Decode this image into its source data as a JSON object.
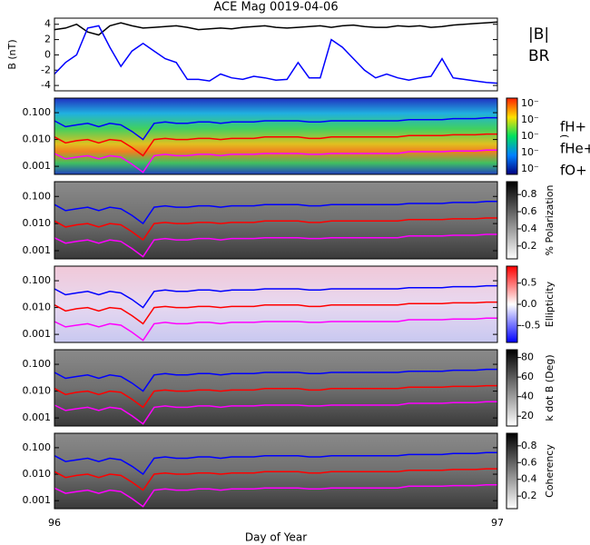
{
  "chart_data": [
    {
      "type": "line",
      "title": "ACE Mag 0019-04-06",
      "ylabel": "B (nT)",
      "x": [
        96.0,
        96.025,
        96.05,
        96.075,
        96.1,
        96.125,
        96.15,
        96.175,
        96.2,
        96.225,
        96.25,
        96.275,
        96.3,
        96.325,
        96.35,
        96.375,
        96.4,
        96.425,
        96.45,
        96.475,
        96.5,
        96.525,
        96.55,
        96.575,
        96.6,
        96.625,
        96.65,
        96.675,
        96.7,
        96.725,
        96.75,
        96.775,
        96.8,
        96.825,
        96.85,
        96.875,
        96.9,
        96.925,
        96.95,
        96.975,
        97.0
      ],
      "xlim": [
        96,
        97
      ],
      "ylim": [
        -4.7,
        4.8
      ],
      "yticks": [
        4,
        2,
        0,
        -2,
        -4
      ],
      "series": [
        {
          "name": "|B|",
          "color": "#000000",
          "values": [
            3.3,
            3.5,
            4,
            3,
            2.6,
            3.8,
            4.2,
            3.8,
            3.5,
            3.6,
            3.7,
            3.8,
            3.6,
            3.3,
            3.4,
            3.5,
            3.4,
            3.6,
            3.7,
            3.8,
            3.6,
            3.5,
            3.6,
            3.7,
            3.8,
            3.6,
            3.8,
            3.9,
            3.7,
            3.6,
            3.6,
            3.8,
            3.7,
            3.8,
            3.6,
            3.7,
            3.9,
            4,
            4.1,
            4.2,
            4.3
          ]
        },
        {
          "name": "BR",
          "color": "#0000ff",
          "values": [
            -2.5,
            -1,
            0,
            3.5,
            3.8,
            1,
            -1.5,
            0.5,
            1.5,
            0.5,
            -0.5,
            -1,
            -3.2,
            -3.2,
            -3.4,
            -2.5,
            -3,
            -3.2,
            -2.8,
            -3,
            -3.3,
            -3.2,
            -1,
            -3,
            -3,
            2,
            1,
            -0.5,
            -2,
            -3,
            -2.5,
            -3,
            -3.3,
            -3,
            -2.8,
            -0.5,
            -3,
            -3.2,
            -3.4,
            -3.6,
            -3.7
          ]
        }
      ]
    },
    {
      "type": "spectrogram",
      "ylog": true,
      "ylim": [
        0.0005,
        0.35
      ],
      "yticks": [
        0.001,
        {
          "value": 0.01,
          "label": "0.010"
        },
        {
          "value": 0.1,
          "label": "0.100"
        }
      ],
      "colorbar_label": ")",
      "colorbar_tick_labels": [
        "10⁻",
        "10⁻",
        "10⁻",
        "10⁻",
        "10⁻"
      ],
      "series": [
        {
          "name": "fH+",
          "color": "#0000ff",
          "values": [
            0.05,
            0.03,
            0.035,
            0.04,
            0.03,
            0.04,
            0.035,
            0.02,
            0.01,
            0.04,
            0.045,
            0.04,
            0.04,
            0.045,
            0.045,
            0.04,
            0.045,
            0.045,
            0.045,
            0.05,
            0.05,
            0.05,
            0.05,
            0.045,
            0.045,
            0.05,
            0.05,
            0.05,
            0.05,
            0.05,
            0.05,
            0.05,
            0.055,
            0.055,
            0.055,
            0.055,
            0.06,
            0.06,
            0.06,
            0.065,
            0.065
          ]
        },
        {
          "name": "fHe+",
          "color": "#ff0000",
          "values": [
            0.0125,
            0.0075,
            0.009,
            0.01,
            0.0075,
            0.01,
            0.009,
            0.005,
            0.0025,
            0.01,
            0.011,
            0.01,
            0.01,
            0.011,
            0.011,
            0.01,
            0.011,
            0.011,
            0.011,
            0.0125,
            0.0125,
            0.0125,
            0.0125,
            0.011,
            0.011,
            0.0125,
            0.0125,
            0.0125,
            0.0125,
            0.0125,
            0.0125,
            0.0125,
            0.014,
            0.014,
            0.014,
            0.014,
            0.015,
            0.015,
            0.015,
            0.016,
            0.016
          ]
        },
        {
          "name": "fO+",
          "color": "#ff00ff",
          "values": [
            0.003,
            0.0019,
            0.0022,
            0.0025,
            0.0019,
            0.0025,
            0.0022,
            0.0012,
            0.0006,
            0.0025,
            0.0028,
            0.0025,
            0.0025,
            0.0028,
            0.0028,
            0.0025,
            0.0028,
            0.0028,
            0.0028,
            0.003,
            0.003,
            0.003,
            0.003,
            0.0028,
            0.0028,
            0.003,
            0.003,
            0.003,
            0.003,
            0.003,
            0.003,
            0.003,
            0.0035,
            0.0035,
            0.0035,
            0.0035,
            0.0037,
            0.0037,
            0.0037,
            0.004,
            0.004
          ]
        }
      ]
    },
    {
      "type": "spectrogram",
      "ylog": true,
      "ylim": [
        0.0005,
        0.35
      ],
      "yticks": [
        0.001,
        {
          "value": 0.01,
          "label": "0.010"
        },
        {
          "value": 0.1,
          "label": "0.100"
        }
      ],
      "colorbar_label": "% Polarization",
      "clim": [
        0.05,
        0.95
      ],
      "cticks": [
        0.2,
        0.4,
        0.6,
        0.8
      ]
    },
    {
      "type": "spectrogram",
      "ylog": true,
      "ylim": [
        0.0005,
        0.35
      ],
      "yticks": [
        0.001,
        {
          "value": 0.01,
          "label": "0.010"
        },
        {
          "value": 0.1,
          "label": "0.100"
        }
      ],
      "colorbar_label": "Ellipticity",
      "clim": [
        -0.9,
        0.9
      ],
      "cticks": [
        -0.5,
        {
          "value": 0,
          "label": "0.0"
        },
        0.5
      ]
    },
    {
      "type": "spectrogram",
      "ylog": true,
      "ylim": [
        0.0005,
        0.35
      ],
      "yticks": [
        0.001,
        {
          "value": 0.01,
          "label": "0.010"
        },
        {
          "value": 0.1,
          "label": "0.100"
        }
      ],
      "colorbar_label": "k dot B (Deg)",
      "clim": [
        10,
        88
      ],
      "cticks": [
        20,
        40,
        60,
        80
      ]
    },
    {
      "type": "spectrogram",
      "ylog": true,
      "ylim": [
        0.0005,
        0.35
      ],
      "yticks": [
        0.001,
        {
          "value": 0.01,
          "label": "0.010"
        },
        {
          "value": 0.1,
          "label": "0.100"
        }
      ],
      "colorbar_label": "Coherency",
      "clim": [
        0.05,
        0.95
      ],
      "cticks": [
        0.2,
        0.4,
        0.6,
        0.8
      ],
      "xlabel": "Day of Year",
      "xticks": [
        96,
        97
      ]
    }
  ]
}
